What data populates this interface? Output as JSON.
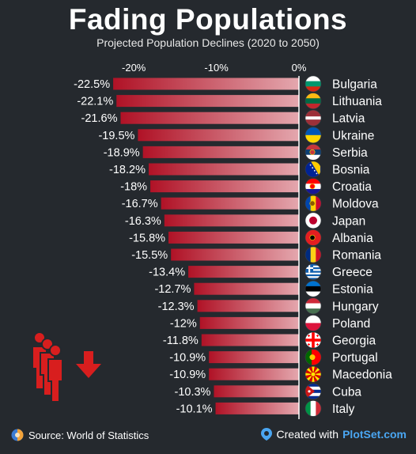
{
  "header": {
    "title": "Fading Populations",
    "subtitle": "Projected Population Declines (2020 to 2050)"
  },
  "footer": {
    "source": "Source: World of Statistics",
    "created_with": "Created with",
    "brand": "PlotSet.com"
  },
  "colors": {
    "background": "#25292e",
    "bar_start": "#e4a7ae",
    "bar_end": "#b01226",
    "icon_red": "#d81e1e",
    "brand_blue": "#4aa6f2"
  },
  "chart_data": {
    "type": "bar",
    "orientation": "horizontal",
    "title": "Fading Populations",
    "subtitle": "Projected Population Declines (2020 to 2050)",
    "xlim": [
      -25,
      0
    ],
    "ticks": [
      {
        "value": -20,
        "label": "-20%"
      },
      {
        "value": -10,
        "label": "-10%"
      },
      {
        "value": 0,
        "label": "0%"
      }
    ],
    "categories": [
      "Bulgaria",
      "Lithuania",
      "Latvia",
      "Ukraine",
      "Serbia",
      "Bosnia",
      "Croatia",
      "Moldova",
      "Japan",
      "Albania",
      "Romania",
      "Greece",
      "Estonia",
      "Hungary",
      "Poland",
      "Georgia",
      "Portugal",
      "Macedonia",
      "Cuba",
      "Italy"
    ],
    "values": [
      -22.5,
      -22.1,
      -21.6,
      -19.5,
      -18.9,
      -18.2,
      -18,
      -16.7,
      -16.3,
      -15.8,
      -15.5,
      -13.4,
      -12.7,
      -12.3,
      -12,
      -11.8,
      -10.9,
      -10.9,
      -10.3,
      -10.1
    ],
    "labels": [
      "-22.5%",
      "-22.1%",
      "-21.6%",
      "-19.5%",
      "-18.9%",
      "-18.2%",
      "-18%",
      "-16.7%",
      "-16.3%",
      "-15.8%",
      "-15.5%",
      "-13.4%",
      "-12.7%",
      "-12.3%",
      "-12%",
      "-11.8%",
      "-10.9%",
      "-10.9%",
      "-10.3%",
      "-10.1%"
    ],
    "flag_icons": [
      "bulgaria-flag-icon",
      "lithuania-flag-icon",
      "latvia-flag-icon",
      "ukraine-flag-icon",
      "serbia-flag-icon",
      "bosnia-flag-icon",
      "croatia-flag-icon",
      "moldova-flag-icon",
      "japan-flag-icon",
      "albania-flag-icon",
      "romania-flag-icon",
      "greece-flag-icon",
      "estonia-flag-icon",
      "hungary-flag-icon",
      "poland-flag-icon",
      "georgia-flag-icon",
      "portugal-flag-icon",
      "macedonia-flag-icon",
      "cuba-flag-icon",
      "italy-flag-icon"
    ],
    "grid": false,
    "legend": "none"
  }
}
